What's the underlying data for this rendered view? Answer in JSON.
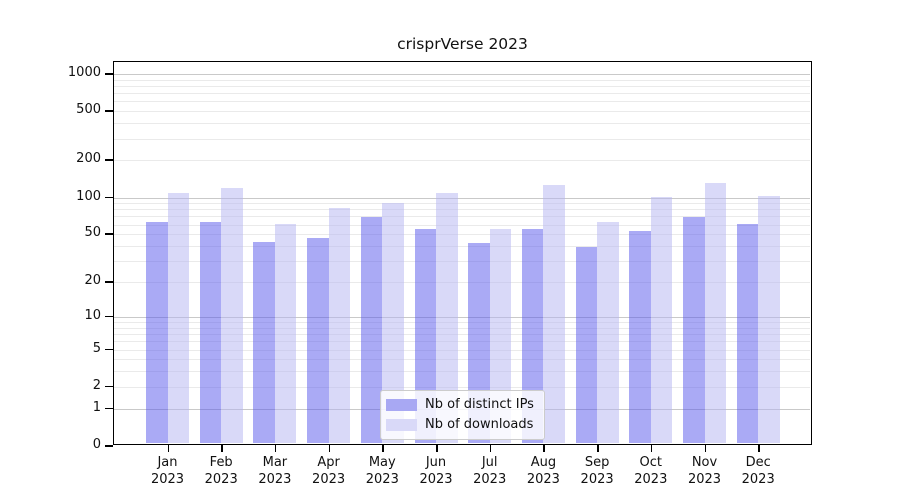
{
  "title": "crisprVerse 2023",
  "chart_data": {
    "type": "bar",
    "title": "crisprVerse 2023",
    "categories": [
      "Jan",
      "Feb",
      "Mar",
      "Apr",
      "May",
      "Jun",
      "Jul",
      "Aug",
      "Sep",
      "Oct",
      "Nov",
      "Dec"
    ],
    "x_year": "2023",
    "series": [
      {
        "name": "Nb of distinct IPs",
        "color": "#a8a8f3",
        "fill": "rgba(85,85,235,0.5)",
        "values": [
          60,
          60,
          41,
          44,
          66,
          52,
          40,
          52,
          37,
          50,
          66,
          57
        ]
      },
      {
        "name": "Nb of downloads",
        "color": "#d9d9f8",
        "fill": "rgba(180,180,242,0.5)",
        "values": [
          103,
          114,
          57,
          78,
          86,
          102,
          52,
          119,
          60,
          95,
          124,
          98
        ]
      }
    ],
    "yscale": "log1p",
    "ylim": [
      0,
      1250
    ],
    "yticks": [
      0,
      1,
      2,
      5,
      10,
      20,
      50,
      100,
      200,
      500,
      1000
    ],
    "grid": {
      "major": [
        1,
        10,
        100,
        1000
      ],
      "minor": [
        2,
        3,
        4,
        5,
        6,
        7,
        8,
        9,
        20,
        30,
        40,
        50,
        60,
        70,
        80,
        90,
        200,
        300,
        400,
        500,
        600,
        700,
        800,
        900
      ]
    },
    "legend": {
      "position": "lower-center"
    },
    "colors": {
      "grid_major": "#c9c9c9",
      "grid_minor": "#eaeaea",
      "axis": "#000000",
      "text": "#111111",
      "background": "#ffffff"
    }
  }
}
